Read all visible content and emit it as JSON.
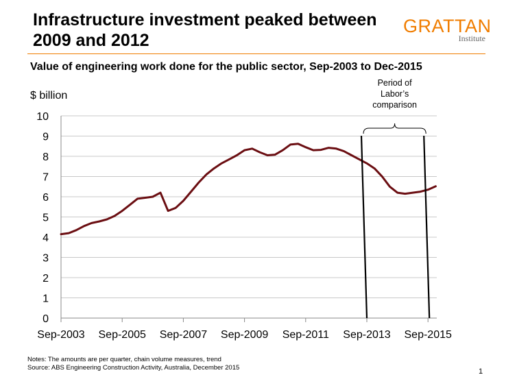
{
  "header": {
    "title": "Infrastructure investment peaked between 2009 and 2012",
    "logo_main": "GRATTAN",
    "logo_sub": "Institute"
  },
  "footer": {
    "notes": "Notes: The amounts are per quarter, chain volume measures, trend",
    "source": "Source: ABS Engineering Construction Activity, Australia, December 2015",
    "page_number": "1"
  },
  "colors": {
    "series": "#6b0e12",
    "accent": "#f07d00",
    "grid": "#c8c8c8"
  },
  "chart_data": {
    "type": "line",
    "title": "Value of engineering work done for the public sector, Sep-2003 to Dec-2015",
    "ylabel": "$ billion",
    "xlabel": "",
    "ylim": [
      0,
      10
    ],
    "yticks": [
      0,
      1,
      2,
      3,
      4,
      5,
      6,
      7,
      8,
      9,
      10
    ],
    "grid": true,
    "legend": "none",
    "x_tick_labels": [
      "Sep-2003",
      "Sep-2005",
      "Sep-2007",
      "Sep-2009",
      "Sep-2011",
      "Sep-2013",
      "Sep-2015"
    ],
    "x": [
      "Sep-2003",
      "Dec-2003",
      "Mar-2004",
      "Jun-2004",
      "Sep-2004",
      "Dec-2004",
      "Mar-2005",
      "Jun-2005",
      "Sep-2005",
      "Dec-2005",
      "Mar-2006",
      "Jun-2006",
      "Sep-2006",
      "Dec-2006",
      "Mar-2007",
      "Jun-2007",
      "Sep-2007",
      "Dec-2007",
      "Mar-2008",
      "Jun-2008",
      "Sep-2008",
      "Dec-2008",
      "Mar-2009",
      "Jun-2009",
      "Sep-2009",
      "Dec-2009",
      "Mar-2010",
      "Jun-2010",
      "Sep-2010",
      "Dec-2010",
      "Mar-2011",
      "Jun-2011",
      "Sep-2011",
      "Dec-2011",
      "Mar-2012",
      "Jun-2012",
      "Sep-2012",
      "Dec-2012",
      "Mar-2013",
      "Jun-2013",
      "Sep-2013",
      "Dec-2013",
      "Mar-2014",
      "Jun-2014",
      "Sep-2014",
      "Dec-2014",
      "Mar-2015",
      "Jun-2015",
      "Sep-2015",
      "Dec-2015"
    ],
    "series": [
      {
        "values": [
          4.15,
          4.2,
          4.35,
          4.55,
          4.7,
          4.78,
          4.88,
          5.05,
          5.3,
          5.6,
          5.9,
          5.95,
          6.0,
          6.2,
          5.3,
          5.45,
          5.8,
          6.25,
          6.7,
          7.1,
          7.4,
          7.65,
          7.85,
          8.05,
          8.3,
          8.38,
          8.2,
          8.05,
          8.08,
          8.3,
          8.58,
          8.62,
          8.45,
          8.3,
          8.32,
          8.42,
          8.38,
          8.25,
          8.05,
          7.85,
          7.65,
          7.4,
          7.0,
          6.5,
          6.2,
          6.15,
          6.2,
          6.25,
          6.35,
          6.52
        ]
      }
    ],
    "annotation": {
      "text_lines": [
        "Period of",
        "Labor’s",
        "comparison"
      ],
      "from": "Sep-2013",
      "to": "Sep-2015"
    }
  }
}
